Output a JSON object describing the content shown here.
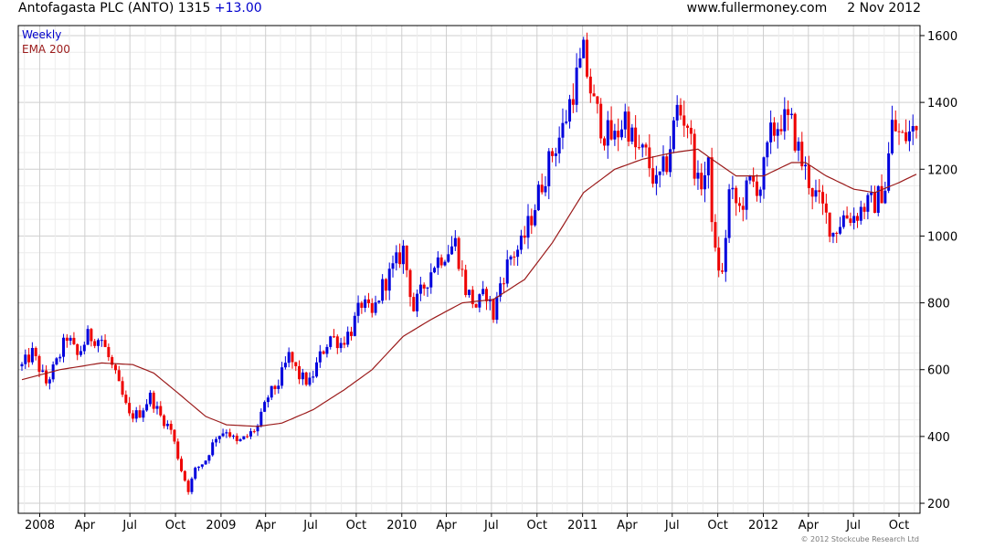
{
  "header": {
    "ticker": "Antofagasta PLC (ANTO) 1315",
    "change": "+13.00",
    "website": "www.fullermoney.com",
    "date": "2 Nov 2012"
  },
  "copyright": "© 2012 Stockcube Research Ltd",
  "colors": {
    "up": "#0000dd",
    "down": "#ee0000",
    "ema": "#9b1b1b",
    "grid": "#d6d6d6"
  },
  "chart_data": {
    "type": "candlestick",
    "title": "Antofagasta PLC (ANTO) 1315 +13.00",
    "legend": [
      "Weekly",
      "EMA 200"
    ],
    "legend_position": "top-left",
    "grid": true,
    "ylim": [
      170,
      1630
    ],
    "y_ticks": [
      200,
      400,
      600,
      800,
      1000,
      1200,
      1400,
      1600
    ],
    "x_start": "2007-11-26",
    "x_end": "2012-11-05",
    "x_ticks": [
      {
        "date": "2008-01-01",
        "label": "2008"
      },
      {
        "date": "2008-04-01",
        "label": "Apr"
      },
      {
        "date": "2008-07-01",
        "label": "Jul"
      },
      {
        "date": "2008-10-01",
        "label": "Oct"
      },
      {
        "date": "2009-01-01",
        "label": "2009"
      },
      {
        "date": "2009-04-01",
        "label": "Apr"
      },
      {
        "date": "2009-07-01",
        "label": "Jul"
      },
      {
        "date": "2009-10-01",
        "label": "Oct"
      },
      {
        "date": "2010-01-01",
        "label": "2010"
      },
      {
        "date": "2010-04-01",
        "label": "Apr"
      },
      {
        "date": "2010-07-01",
        "label": "Jul"
      },
      {
        "date": "2010-10-01",
        "label": "Oct"
      },
      {
        "date": "2011-01-01",
        "label": "2011"
      },
      {
        "date": "2011-04-01",
        "label": "Apr"
      },
      {
        "date": "2011-07-01",
        "label": "Jul"
      },
      {
        "date": "2011-10-01",
        "label": "Oct"
      },
      {
        "date": "2012-01-01",
        "label": "2012"
      },
      {
        "date": "2012-04-01",
        "label": "Apr"
      },
      {
        "date": "2012-07-01",
        "label": "Jul"
      },
      {
        "date": "2012-10-01",
        "label": "Oct"
      }
    ],
    "close_anchors": [
      [
        "2007-11-26",
        610
      ],
      [
        "2007-12-17",
        650
      ],
      [
        "2008-01-14",
        560
      ],
      [
        "2008-02-04",
        620
      ],
      [
        "2008-02-25",
        700
      ],
      [
        "2008-03-17",
        640
      ],
      [
        "2008-04-07",
        700
      ],
      [
        "2008-05-05",
        690
      ],
      [
        "2008-06-02",
        580
      ],
      [
        "2008-06-30",
        460
      ],
      [
        "2008-07-21",
        470
      ],
      [
        "2008-08-11",
        520
      ],
      [
        "2008-09-01",
        460
      ],
      [
        "2008-09-22",
        420
      ],
      [
        "2008-10-13",
        300
      ],
      [
        "2008-10-27",
        240
      ],
      [
        "2008-11-10",
        300
      ],
      [
        "2008-12-01",
        330
      ],
      [
        "2008-12-22",
        400
      ],
      [
        "2009-01-12",
        420
      ],
      [
        "2009-02-02",
        380
      ],
      [
        "2009-02-23",
        400
      ],
      [
        "2009-03-16",
        430
      ],
      [
        "2009-04-06",
        520
      ],
      [
        "2009-04-27",
        560
      ],
      [
        "2009-05-18",
        640
      ],
      [
        "2009-06-08",
        580
      ],
      [
        "2009-06-29",
        560
      ],
      [
        "2009-07-20",
        640
      ],
      [
        "2009-08-10",
        700
      ],
      [
        "2009-08-31",
        680
      ],
      [
        "2009-09-21",
        720
      ],
      [
        "2009-10-12",
        800
      ],
      [
        "2009-11-02",
        760
      ],
      [
        "2009-11-23",
        850
      ],
      [
        "2009-12-14",
        900
      ],
      [
        "2010-01-04",
        960
      ],
      [
        "2010-01-25",
        780
      ],
      [
        "2010-02-15",
        850
      ],
      [
        "2010-03-08",
        920
      ],
      [
        "2010-03-29",
        950
      ],
      [
        "2010-04-19",
        980
      ],
      [
        "2010-05-10",
        840
      ],
      [
        "2010-05-31",
        790
      ],
      [
        "2010-06-21",
        830
      ],
      [
        "2010-07-05",
        760
      ],
      [
        "2010-07-19",
        860
      ],
      [
        "2010-08-09",
        940
      ],
      [
        "2010-08-30",
        970
      ],
      [
        "2010-09-20",
        1060
      ],
      [
        "2010-10-11",
        1160
      ],
      [
        "2010-11-01",
        1250
      ],
      [
        "2010-11-22",
        1320
      ],
      [
        "2010-12-13",
        1440
      ],
      [
        "2011-01-03",
        1540
      ],
      [
        "2011-01-24",
        1390
      ],
      [
        "2011-02-14",
        1310
      ],
      [
        "2011-03-07",
        1290
      ],
      [
        "2011-03-28",
        1360
      ],
      [
        "2011-04-18",
        1260
      ],
      [
        "2011-05-09",
        1240
      ],
      [
        "2011-05-30",
        1150
      ],
      [
        "2011-06-20",
        1220
      ],
      [
        "2011-07-11",
        1380
      ],
      [
        "2011-08-01",
        1340
      ],
      [
        "2011-08-22",
        1150
      ],
      [
        "2011-09-12",
        1200
      ],
      [
        "2011-09-26",
        940
      ],
      [
        "2011-10-10",
        880
      ],
      [
        "2011-10-24",
        1130
      ],
      [
        "2011-11-14",
        1080
      ],
      [
        "2011-12-05",
        1160
      ],
      [
        "2011-12-26",
        1150
      ],
      [
        "2012-01-16",
        1300
      ],
      [
        "2012-02-06",
        1350
      ],
      [
        "2012-02-27",
        1330
      ],
      [
        "2012-03-19",
        1220
      ],
      [
        "2012-04-09",
        1140
      ],
      [
        "2012-04-30",
        1080
      ],
      [
        "2012-05-21",
        1010
      ],
      [
        "2012-06-11",
        1060
      ],
      [
        "2012-07-02",
        1060
      ],
      [
        "2012-07-23",
        1090
      ],
      [
        "2012-08-13",
        1100
      ],
      [
        "2012-09-03",
        1150
      ],
      [
        "2012-09-17",
        1330
      ],
      [
        "2012-10-08",
        1290
      ],
      [
        "2012-10-29",
        1315
      ]
    ],
    "ema_anchors": [
      [
        "2007-11-26",
        570
      ],
      [
        "2008-02-11",
        600
      ],
      [
        "2008-05-05",
        620
      ],
      [
        "2008-07-07",
        615
      ],
      [
        "2008-08-18",
        590
      ],
      [
        "2008-10-06",
        530
      ],
      [
        "2008-12-01",
        460
      ],
      [
        "2009-01-12",
        435
      ],
      [
        "2009-03-16",
        430
      ],
      [
        "2009-05-04",
        440
      ],
      [
        "2009-07-06",
        480
      ],
      [
        "2009-09-07",
        540
      ],
      [
        "2009-11-02",
        600
      ],
      [
        "2010-01-04",
        700
      ],
      [
        "2010-03-01",
        750
      ],
      [
        "2010-05-03",
        800
      ],
      [
        "2010-07-05",
        810
      ],
      [
        "2010-09-06",
        870
      ],
      [
        "2010-11-01",
        980
      ],
      [
        "2011-01-03",
        1130
      ],
      [
        "2011-03-07",
        1200
      ],
      [
        "2011-05-02",
        1230
      ],
      [
        "2011-07-04",
        1250
      ],
      [
        "2011-08-22",
        1260
      ],
      [
        "2011-09-19",
        1230
      ],
      [
        "2011-11-07",
        1180
      ],
      [
        "2012-01-02",
        1180
      ],
      [
        "2012-02-27",
        1220
      ],
      [
        "2012-03-26",
        1220
      ],
      [
        "2012-05-07",
        1180
      ],
      [
        "2012-07-02",
        1140
      ],
      [
        "2012-08-13",
        1130
      ],
      [
        "2012-10-01",
        1160
      ],
      [
        "2012-11-05",
        1185
      ]
    ]
  }
}
